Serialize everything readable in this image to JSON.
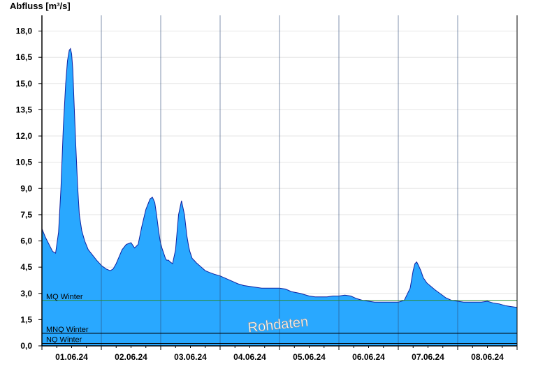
{
  "chart_data": {
    "type": "area",
    "ylabel": "Abfluss [m³/s]",
    "watermark": "Rohdaten",
    "ylim": [
      0,
      18.9
    ],
    "yticks": [
      0,
      1.5,
      3,
      4.5,
      6,
      7.5,
      9,
      10.5,
      12,
      13.5,
      15,
      16.5,
      18
    ],
    "ytick_labels": [
      "0,0",
      "1,5",
      "3,0",
      "4,5",
      "6,0",
      "7,5",
      "9,0",
      "10,5",
      "12,0",
      "13,5",
      "15,0",
      "16,5",
      "18,0"
    ],
    "xlim_days": [
      0,
      8
    ],
    "xtick_labels": [
      "01.06.24",
      "02.06.24",
      "03.06.24",
      "04.06.24",
      "05.06.24",
      "06.06.24",
      "07.06.24",
      "08.06.24"
    ],
    "grid": true,
    "colors": {
      "fill": "#29a8ff",
      "outline": "#1020a0",
      "mq_line": "#2a8a2a",
      "low_lines": "#000000"
    },
    "reference_lines": [
      {
        "label": "MQ Winter",
        "value": 2.6
      },
      {
        "label": "MNQ Winter",
        "value": 0.72
      },
      {
        "label": "NQ Winter",
        "value": 0.14
      }
    ],
    "series": [
      {
        "x": [
          0,
          0.06,
          0.12,
          0.18,
          0.23,
          0.28,
          0.32,
          0.36,
          0.4,
          0.43,
          0.46,
          0.48,
          0.5,
          0.52,
          0.54,
          0.57,
          0.6,
          0.63,
          0.67,
          0.72,
          0.78,
          0.85,
          0.92,
          1.0,
          1.08,
          1.15,
          1.2,
          1.25,
          1.3,
          1.35,
          1.42,
          1.5,
          1.56,
          1.62,
          1.68,
          1.75,
          1.82,
          1.86,
          1.9,
          1.93,
          1.96,
          1.99,
          2.02,
          2.05,
          2.08,
          2.1,
          2.13,
          2.16,
          2.2,
          2.25,
          2.3,
          2.35,
          2.4,
          2.44,
          2.47,
          2.49,
          2.51,
          2.53,
          2.56,
          2.6,
          2.65,
          2.7,
          2.75,
          2.82,
          2.9,
          3.0,
          3.1,
          3.2,
          3.3,
          3.4,
          3.5,
          3.6,
          3.7,
          3.8,
          3.9,
          4.0,
          4.1,
          4.2,
          4.35,
          4.5,
          4.6,
          4.7,
          4.8,
          4.9,
          5.0,
          5.1,
          5.2,
          5.3,
          5.4,
          5.5,
          5.6,
          5.7,
          5.8,
          5.9,
          6.0,
          6.1,
          6.2,
          6.25,
          6.28,
          6.31,
          6.34,
          6.38,
          6.42,
          6.48,
          6.55,
          6.62,
          6.7,
          6.8,
          6.9,
          7.0,
          7.1,
          7.2,
          7.3,
          7.4,
          7.5,
          7.6,
          7.7,
          7.8,
          7.9,
          8.0
        ],
        "y": [
          6.7,
          6.2,
          5.8,
          5.4,
          5.3,
          6.5,
          9.0,
          12.5,
          15.0,
          16.3,
          16.9,
          17.0,
          16.7,
          15.8,
          14.0,
          11.5,
          9.2,
          7.5,
          6.6,
          6.0,
          5.5,
          5.2,
          4.9,
          4.6,
          4.4,
          4.3,
          4.4,
          4.7,
          5.1,
          5.5,
          5.8,
          5.9,
          5.6,
          5.8,
          6.8,
          7.8,
          8.4,
          8.5,
          8.2,
          7.5,
          6.7,
          6.0,
          5.6,
          5.3,
          5.0,
          4.9,
          4.9,
          4.8,
          4.7,
          5.5,
          7.5,
          8.3,
          7.5,
          6.3,
          5.7,
          5.4,
          5.2,
          5.0,
          4.9,
          4.75,
          4.6,
          4.45,
          4.3,
          4.2,
          4.1,
          4.0,
          3.85,
          3.7,
          3.55,
          3.45,
          3.4,
          3.35,
          3.3,
          3.3,
          3.3,
          3.3,
          3.25,
          3.1,
          3.0,
          2.85,
          2.8,
          2.8,
          2.8,
          2.85,
          2.85,
          2.9,
          2.85,
          2.7,
          2.6,
          2.55,
          2.5,
          2.5,
          2.5,
          2.5,
          2.5,
          2.6,
          3.3,
          4.3,
          4.7,
          4.8,
          4.6,
          4.3,
          3.9,
          3.6,
          3.4,
          3.2,
          3.0,
          2.75,
          2.6,
          2.55,
          2.5,
          2.5,
          2.5,
          2.5,
          2.55,
          2.45,
          2.4,
          2.3,
          2.25,
          2.2
        ]
      }
    ]
  }
}
